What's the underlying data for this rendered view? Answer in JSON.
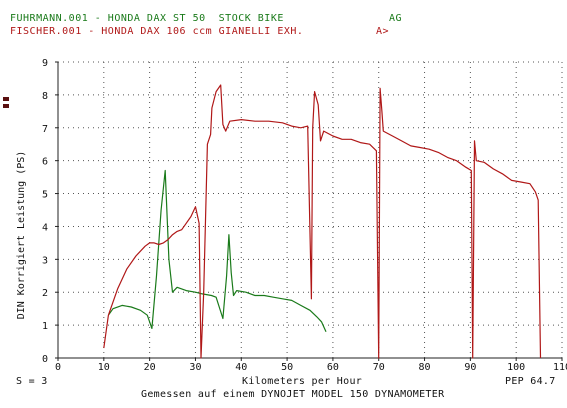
{
  "header": {
    "row1_left": "FUHRMANN.001 - HONDA DAX ST 50  STOCK BIKE",
    "row1_right": "AG",
    "row2_left": "FISCHER.001 - HONDA DAX 106 ccm GIANELLI EXH.",
    "row2_right": "A>"
  },
  "footer": {
    "smoothing": "S = 3",
    "xlabel": "Kilometers per Hour",
    "pep": "PEP 64.7",
    "caption": "Gemessen auf einem DYNOJET MODEL 150 DYNAMOMETER"
  },
  "colors": {
    "series_green": "#1a7a1a",
    "series_red": "#b01818",
    "axis": "#222222",
    "grid": "#555555"
  },
  "chart_data": {
    "type": "line",
    "title": "",
    "xlabel": "Kilometers per Hour",
    "ylabel": "DIN Korrigiert Leistung (PS)",
    "xlim": [
      0,
      110
    ],
    "ylim": [
      0,
      9
    ],
    "xticks": [
      "0",
      "10",
      "20",
      "30",
      "40",
      "50",
      "60",
      "70",
      "80",
      "90",
      "100",
      "110"
    ],
    "yticks": [
      "0",
      "1",
      "2",
      "3",
      "4",
      "5",
      "6",
      "7",
      "8",
      "9"
    ],
    "grid": true,
    "series": [
      {
        "name": "FUHRMANN.001 - HONDA DAX ST 50  STOCK BIKE",
        "color": "#1a7a1a",
        "x": [
          11,
          12,
          14,
          16,
          18,
          19.5,
          20.5,
          21.5,
          22.5,
          23.4,
          24.2,
          25,
          26,
          28,
          30,
          31.5,
          33.5,
          34.5,
          36,
          36.8,
          37.3,
          37.8,
          38.3,
          39,
          41,
          43,
          45,
          47,
          49,
          51,
          53,
          55,
          56.5,
          57.5,
          58.5
        ],
        "y": [
          1.3,
          1.5,
          1.6,
          1.55,
          1.45,
          1.3,
          0.9,
          2.5,
          4.5,
          5.7,
          3.0,
          2.0,
          2.15,
          2.05,
          2.0,
          1.95,
          1.9,
          1.85,
          1.2,
          2.5,
          3.75,
          2.6,
          1.9,
          2.05,
          2.0,
          1.9,
          1.9,
          1.85,
          1.8,
          1.75,
          1.6,
          1.45,
          1.25,
          1.1,
          0.8
        ]
      },
      {
        "name": "FISCHER.001 - HONDA DAX 106 ccm GIANELLI EXH.",
        "color": "#b01818",
        "x": [
          10,
          11,
          13,
          15,
          17,
          19,
          20,
          21,
          22,
          23,
          24,
          25,
          26,
          27,
          28,
          29,
          30,
          30.8,
          31.2,
          31.8,
          32.6,
          33.3,
          33.6,
          34.5,
          35.5,
          36,
          36.6,
          37.5,
          40,
          43,
          46,
          49,
          51,
          53,
          54.5,
          55.3,
          55.6,
          56,
          56.8,
          57.3,
          58,
          60,
          62,
          64,
          66,
          68,
          69.5,
          70,
          70.3,
          70.7,
          71,
          73,
          75,
          77,
          79,
          81,
          83,
          85,
          87,
          89,
          90.2,
          90.5,
          90.9,
          91.3,
          93,
          95,
          97,
          99,
          101,
          103,
          104.2,
          104.8,
          105.3
        ],
        "y": [
          0.3,
          1.3,
          2.1,
          2.7,
          3.1,
          3.4,
          3.5,
          3.5,
          3.45,
          3.5,
          3.6,
          3.75,
          3.85,
          3.9,
          4.1,
          4.3,
          4.6,
          4.1,
          0.0,
          2.0,
          6.5,
          6.8,
          7.6,
          8.1,
          8.3,
          7.1,
          6.9,
          7.2,
          7.25,
          7.2,
          7.2,
          7.15,
          7.05,
          7.0,
          7.05,
          1.8,
          7.0,
          8.1,
          7.7,
          6.6,
          6.9,
          6.75,
          6.65,
          6.65,
          6.55,
          6.5,
          6.3,
          0.0,
          8.2,
          7.5,
          6.9,
          6.75,
          6.6,
          6.45,
          6.4,
          6.35,
          6.25,
          6.1,
          6.0,
          5.8,
          5.7,
          0.0,
          6.6,
          6.0,
          5.95,
          5.75,
          5.6,
          5.4,
          5.35,
          5.3,
          5.05,
          4.8,
          0.0
        ]
      }
    ]
  }
}
